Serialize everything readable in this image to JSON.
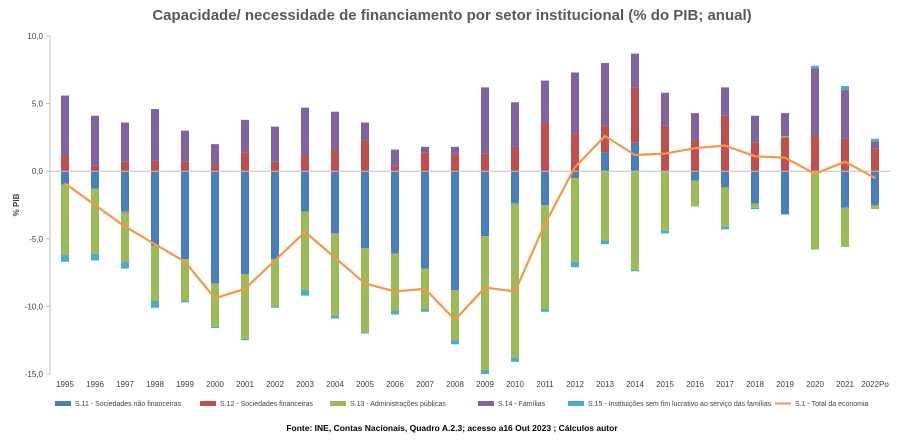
{
  "chart_data": {
    "type": "bar",
    "stacked": true,
    "title": "Capacidade/ necessidade de financiamento por setor institucional (% do PIB; anual)",
    "ylabel": "% PIB",
    "xlabel": "",
    "ylim": [
      -15,
      10
    ],
    "yticks": [
      10,
      5,
      0,
      -5,
      -10,
      -15
    ],
    "ytick_labels": [
      "10,0",
      "5,0",
      "0,0",
      "-5,0",
      "-10,0",
      "-15,0"
    ],
    "grid": false,
    "legend_position": "bottom",
    "source": "Fonte: INE, Contas Nacionais, Quadro A.2.3; acesso a16 Out 2023 ; Cálculos autor",
    "categories": [
      "1995",
      "1996",
      "1997",
      "1998",
      "1999",
      "2000",
      "2001",
      "2002",
      "2003",
      "2004",
      "2005",
      "2006",
      "2007",
      "2008",
      "2009",
      "2010",
      "2011",
      "2012",
      "2013",
      "2014",
      "2015",
      "2016",
      "2017",
      "2018",
      "2019",
      "2020",
      "2021",
      "2022Po"
    ],
    "series": [
      {
        "name": "S.11 - Sociedades não financeiras",
        "kind": "bar",
        "color": "#4a7ebb",
        "values": [
          -1.0,
          -1.3,
          -3.0,
          -5.5,
          -6.5,
          -8.3,
          -7.6,
          -6.5,
          -3.0,
          -4.6,
          -5.7,
          -6.1,
          -7.2,
          -8.8,
          -4.8,
          -2.4,
          -2.5,
          -0.5,
          1.4,
          2.1,
          0.0,
          -0.7,
          -1.2,
          -2.4,
          -3.2,
          0.0,
          -2.7,
          -2.5
        ]
      },
      {
        "name": "S.12 - Sociedades financeiras",
        "kind": "bar",
        "color": "#c0504d",
        "values": [
          1.2,
          0.4,
          0.7,
          0.8,
          0.7,
          0.5,
          1.4,
          0.7,
          1.2,
          1.6,
          2.3,
          0.4,
          1.4,
          1.3,
          1.3,
          1.8,
          3.6,
          2.8,
          2.0,
          4.1,
          3.4,
          2.3,
          4.1,
          2.1,
          2.5,
          2.6,
          2.4,
          1.7
        ]
      },
      {
        "name": "S.13 - Administrações públicas",
        "kind": "bar",
        "color": "#9bbb59",
        "values": [
          -5.2,
          -4.8,
          -3.7,
          -4.1,
          -3.1,
          -3.2,
          -4.8,
          -3.5,
          -5.8,
          -6.1,
          -6.2,
          -4.2,
          -3.0,
          -3.7,
          -9.9,
          -11.4,
          -7.7,
          -6.2,
          -5.1,
          -7.3,
          -4.4,
          -1.9,
          -2.9,
          -0.3,
          0.1,
          -5.8,
          -2.9,
          -0.3
        ]
      },
      {
        "name": "S.14 - Famílias",
        "kind": "bar",
        "color": "#8064a2",
        "values": [
          4.4,
          3.7,
          2.9,
          3.8,
          2.3,
          1.5,
          2.4,
          2.6,
          3.5,
          2.8,
          1.3,
          1.2,
          0.4,
          0.5,
          4.9,
          3.3,
          3.1,
          4.5,
          4.6,
          2.5,
          2.4,
          2.0,
          2.1,
          2.0,
          1.7,
          5.0,
          3.6,
          0.5
        ]
      },
      {
        "name": "S.15 - Instituições sem fim lucrativo ao serviço das famílias",
        "kind": "bar",
        "color": "#4bacc6",
        "values": [
          -0.5,
          -0.5,
          -0.5,
          -0.5,
          -0.1,
          -0.1,
          -0.1,
          -0.1,
          -0.4,
          -0.2,
          -0.1,
          -0.3,
          -0.2,
          -0.3,
          -0.3,
          -0.3,
          -0.2,
          -0.4,
          -0.3,
          -0.1,
          -0.2,
          0.0,
          -0.2,
          -0.1,
          0.0,
          0.2,
          0.3,
          0.2
        ]
      },
      {
        "name": "S.1 - Total da economia",
        "kind": "line",
        "color": "#f79646",
        "values": [
          -0.9,
          -2.5,
          -4.1,
          -5.4,
          -6.7,
          -9.4,
          -8.7,
          -6.6,
          -4.5,
          -6.4,
          -8.3,
          -8.9,
          -8.7,
          -11.0,
          -8.6,
          -8.9,
          -3.9,
          0.3,
          2.6,
          1.2,
          1.3,
          1.7,
          1.9,
          1.1,
          1.0,
          -0.2,
          0.7,
          -0.5
        ]
      }
    ]
  }
}
